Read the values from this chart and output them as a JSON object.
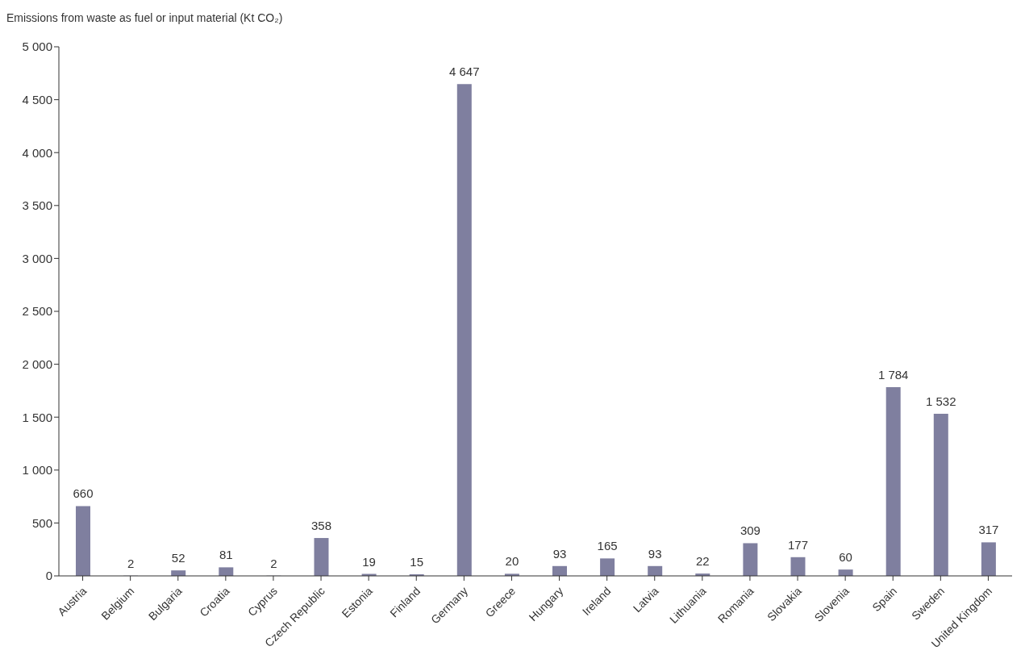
{
  "chart_data": {
    "type": "bar",
    "ylabel": "Emissions from waste as fuel or input material  (Kt CO₂)",
    "categories": [
      "Austria",
      "Belgium",
      "Bulgaria",
      "Croatia",
      "Cyprus",
      "Czech Republic",
      "Estonia",
      "Finland",
      "Germany",
      "Greece",
      "Hungary",
      "Ireland",
      "Latvia",
      "Lithuania",
      "Romania",
      "Slovakia",
      "Slovenia",
      "Spain",
      "Sweden",
      "United Kingdom"
    ],
    "values": [
      660,
      2,
      52,
      81,
      2,
      358,
      19,
      15,
      4647,
      20,
      93,
      165,
      93,
      22,
      309,
      177,
      60,
      1784,
      1532,
      317
    ],
    "value_labels": [
      "660",
      "2",
      "52",
      "81",
      "2",
      "358",
      "19",
      "15",
      "4 647",
      "20",
      "93",
      "165",
      "93",
      "22",
      "309",
      "177",
      "60",
      "1 784",
      "1 532",
      "317"
    ],
    "color": "#7f7f9f",
    "ylim": [
      0,
      5000
    ],
    "yticks": [
      0,
      500,
      {
        "value": 1000,
        "label": "1 000"
      },
      {
        "value": 1500,
        "label": "1 500"
      },
      {
        "value": 2000,
        "label": "2 000"
      },
      {
        "value": 2500,
        "label": "2 500"
      },
      {
        "value": 3000,
        "label": "3 000"
      },
      {
        "value": 3500,
        "label": "3 500"
      },
      {
        "value": 4000,
        "label": "4 000"
      },
      {
        "value": 4500,
        "label": "4 500"
      },
      {
        "value": 5000,
        "label": "5 000"
      }
    ]
  }
}
